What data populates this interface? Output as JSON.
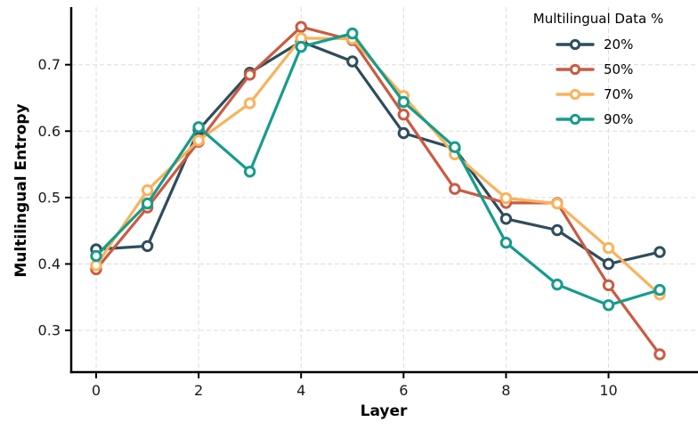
{
  "figure": {
    "background": "#ffffff",
    "grid_color": "#dcdcdc",
    "spine_color": "#000000",
    "tick_label_color": "#1a1a1a"
  },
  "chart_data": {
    "type": "line",
    "title": "",
    "xlabel": "Layer",
    "ylabel": "Multilingual Entropy",
    "x": [
      0,
      1,
      2,
      3,
      4,
      5,
      6,
      7,
      8,
      9,
      10,
      11
    ],
    "x_tick_labels": [
      "0",
      "2",
      "4",
      "6",
      "8",
      "10"
    ],
    "x_tick_values": [
      0,
      2,
      4,
      6,
      8,
      10
    ],
    "y_tick_labels": [
      "0.3",
      "0.4",
      "0.5",
      "0.6",
      "0.7"
    ],
    "y_tick_values": [
      0.3,
      0.4,
      0.5,
      0.6,
      0.7
    ],
    "xlim": [
      -0.5,
      11.75
    ],
    "ylim": [
      0.24,
      0.79
    ],
    "grid": true,
    "grid_style": "dashed",
    "legend_title": "Multilingual Data %",
    "legend_position": "upper right",
    "marker": "circle-open-white",
    "series": [
      {
        "name": "20%",
        "color": "#2e4d5c",
        "values": [
          0.422,
          0.427,
          0.602,
          0.688,
          0.735,
          0.705,
          0.597,
          0.574,
          0.468,
          0.451,
          0.4,
          0.418
        ]
      },
      {
        "name": "50%",
        "color": "#ca5b42",
        "values": [
          0.392,
          0.485,
          0.584,
          0.685,
          0.757,
          0.737,
          0.625,
          0.513,
          0.492,
          0.492,
          0.368,
          0.264
        ]
      },
      {
        "name": "70%",
        "color": "#f9b25c",
        "values": [
          0.398,
          0.511,
          0.586,
          0.642,
          0.74,
          0.739,
          0.653,
          0.565,
          0.499,
          0.491,
          0.424,
          0.354
        ]
      },
      {
        "name": "90%",
        "color": "#169c8c",
        "values": [
          0.412,
          0.491,
          0.606,
          0.539,
          0.727,
          0.747,
          0.644,
          0.576,
          0.432,
          0.369,
          0.338,
          0.361
        ]
      }
    ]
  }
}
